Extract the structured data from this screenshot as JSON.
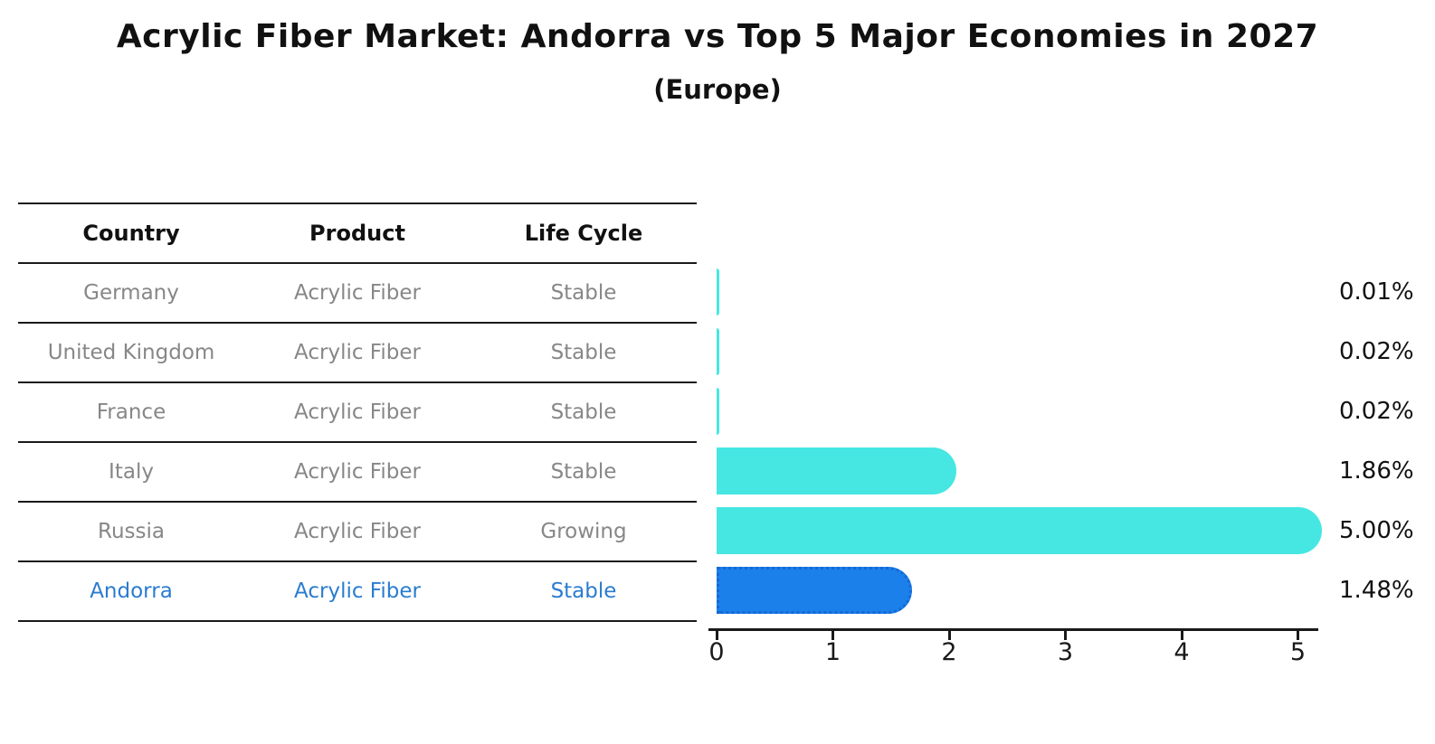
{
  "title": "Acrylic Fiber Market: Andorra vs Top 5 Major Economies in 2027",
  "subtitle": "(Europe)",
  "table": {
    "headers": [
      "Country",
      "Product",
      "Life Cycle"
    ],
    "rows": [
      {
        "country": "Germany",
        "product": "Acrylic Fiber",
        "life_cycle": "Stable",
        "highlight": false
      },
      {
        "country": "United Kingdom",
        "product": "Acrylic Fiber",
        "life_cycle": "Stable",
        "highlight": false
      },
      {
        "country": "France",
        "product": "Acrylic Fiber",
        "life_cycle": "Stable",
        "highlight": false
      },
      {
        "country": "Italy",
        "product": "Acrylic Fiber",
        "life_cycle": "Stable",
        "highlight": false
      },
      {
        "country": "Russia",
        "product": "Acrylic Fiber",
        "life_cycle": "Growing",
        "highlight": false
      },
      {
        "country": "Andorra",
        "product": "Acrylic Fiber",
        "life_cycle": "Stable",
        "highlight": true
      }
    ]
  },
  "chart_data": {
    "type": "bar",
    "orientation": "horizontal",
    "title": "Acrylic Fiber Market: Andorra vs Top 5 Major Economies in 2027",
    "subtitle": "(Europe)",
    "categories": [
      "Germany",
      "United Kingdom",
      "France",
      "Italy",
      "Russia",
      "Andorra"
    ],
    "values": [
      0.01,
      0.02,
      0.02,
      1.86,
      5.0,
      1.48
    ],
    "value_labels": [
      "0.01%",
      "0.02%",
      "0.02%",
      "1.86%",
      "5.00%",
      "1.48%"
    ],
    "x_ticks": [
      0,
      1,
      2,
      3,
      4,
      5
    ],
    "xlim": [
      0,
      5.2
    ],
    "grid": false,
    "legend": false,
    "highlight_index": 5
  },
  "colors": {
    "bar_default": "#46e7e2",
    "bar_highlight": "#1b80ea",
    "bar_highlight_border": "#1568d6",
    "highlight_text": "#2a7cd0",
    "text": "#111111",
    "table_text": "#878787",
    "axis": "#1a1a1a"
  }
}
